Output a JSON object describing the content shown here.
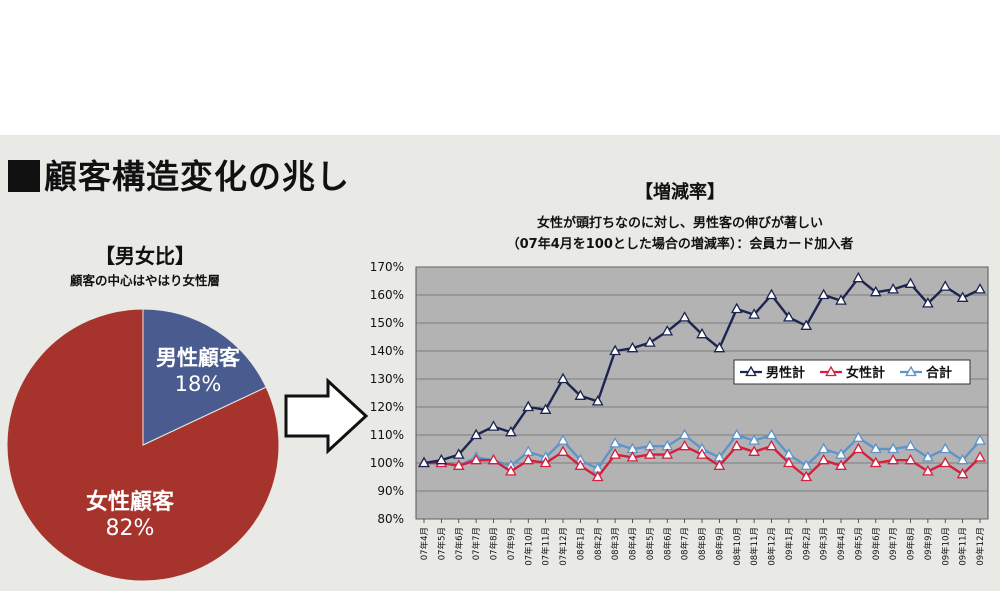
{
  "title": "顧客構造変化の兆し",
  "pie": {
    "title": "【男女比】",
    "subtitle": "顧客の中心はやはり女性層",
    "slices": [
      {
        "label": "男性顧客",
        "value": 18,
        "display": "18%",
        "color": "#4a5b8f"
      },
      {
        "label": "女性顧客",
        "value": 82,
        "display": "82%",
        "color": "#a7342c"
      }
    ]
  },
  "chart_text": {
    "title": "【増減率】",
    "subtitle1": "女性が頭打ちなのに対し、男性客の伸びが著しい",
    "subtitle2": "（07年4月を100とした場合の増減率）：会員カード加入者"
  },
  "chart_data": {
    "type": "line",
    "title": "【増減率】",
    "ylabel": "%",
    "ylim": [
      80,
      170
    ],
    "yticks": [
      "80%",
      "90%",
      "100%",
      "110%",
      "120%",
      "130%",
      "140%",
      "150%",
      "160%",
      "170%"
    ],
    "grid": true,
    "legend": "upper-right inside plot",
    "categories": [
      "07年4月",
      "07年5月",
      "07年6月",
      "07年7月",
      "07年8月",
      "07年9月",
      "07年10月",
      "07年11月",
      "07年12月",
      "08年1月",
      "08年2月",
      "08年3月",
      "08年4月",
      "08年5月",
      "08年6月",
      "08年7月",
      "08年8月",
      "08年9月",
      "08年10月",
      "08年11月",
      "08年12月",
      "09年1月",
      "09年2月",
      "09年3月",
      "09年4月",
      "09年5月",
      "09年6月",
      "09年7月",
      "09年8月",
      "09年9月",
      "09年10月",
      "09年11月",
      "09年12月"
    ],
    "series": [
      {
        "name": "男性計",
        "color": "#1c2450",
        "values": [
          100,
          101,
          103,
          110,
          113,
          111,
          120,
          119,
          130,
          124,
          122,
          140,
          141,
          143,
          147,
          152,
          146,
          141,
          155,
          153,
          160,
          152,
          149,
          160,
          158,
          166,
          161,
          162,
          164,
          157,
          163,
          159,
          162
        ]
      },
      {
        "name": "女性計",
        "color": "#d42040",
        "values": [
          100,
          100,
          99,
          101,
          101,
          97,
          101,
          100,
          104,
          99,
          95,
          103,
          102,
          103,
          103,
          106,
          103,
          99,
          106,
          104,
          106,
          100,
          95,
          101,
          99,
          105,
          100,
          101,
          101,
          97,
          100,
          96,
          102
        ]
      },
      {
        "name": "合計",
        "color": "#5f93c9",
        "values": [
          100,
          100,
          99,
          102,
          101,
          99,
          104,
          102,
          108,
          101,
          98,
          107,
          105,
          106,
          106,
          110,
          105,
          102,
          110,
          108,
          110,
          103,
          99,
          105,
          103,
          109,
          105,
          105,
          106,
          102,
          105,
          101,
          108
        ]
      }
    ]
  }
}
